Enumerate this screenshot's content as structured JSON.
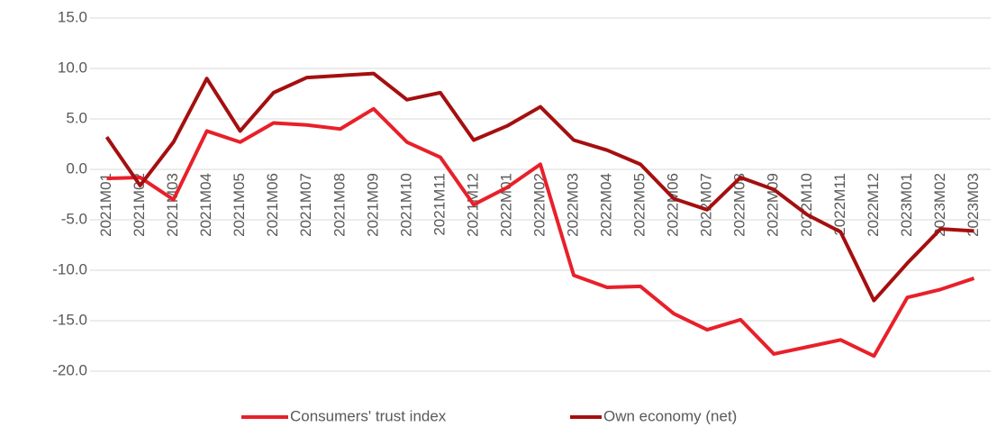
{
  "chart_data": {
    "type": "line",
    "categories": [
      "2021M01",
      "2021M02",
      "2021M03",
      "2021M04",
      "2021M05",
      "2021M06",
      "2021M07",
      "2021M08",
      "2021M09",
      "2021M10",
      "2021M11",
      "2021M12",
      "2022M01",
      "2022M02",
      "2022M03",
      "2022M04",
      "2022M05",
      "2022M06",
      "2022M07",
      "2022M08",
      "2022M09",
      "2022M10",
      "2022M11",
      "2022M12",
      "2023M01",
      "2023M02",
      "2023M03"
    ],
    "series": [
      {
        "name": "Consumers' trust index",
        "color": "#e8202a",
        "values": [
          -0.9,
          -0.8,
          -3.0,
          3.8,
          2.7,
          4.6,
          4.4,
          4.0,
          6.0,
          2.7,
          1.2,
          -3.5,
          -1.8,
          0.5,
          -10.5,
          -11.7,
          -11.6,
          -14.3,
          -15.9,
          -14.9,
          -18.3,
          -17.6,
          -16.9,
          -18.5,
          -12.7,
          -11.9,
          -10.8
        ]
      },
      {
        "name": "Own economy (net)",
        "color": "#a50f0f",
        "values": [
          3.2,
          -1.6,
          2.7,
          9.0,
          3.8,
          7.6,
          9.1,
          9.3,
          9.5,
          6.9,
          7.6,
          2.9,
          4.3,
          6.2,
          2.9,
          1.9,
          0.5,
          -2.9,
          -4.0,
          -0.8,
          -2.0,
          -4.5,
          -6.2,
          -13.0,
          -9.3,
          -5.9,
          -6.1
        ]
      }
    ],
    "ylim": [
      -22.0,
      15.0
    ],
    "yticks": [
      {
        "value": 15,
        "label": "15.0"
      },
      {
        "value": 10,
        "label": "10.0"
      },
      {
        "value": 5,
        "label": "5.0"
      },
      {
        "value": 0,
        "label": "0.0"
      },
      {
        "value": -5,
        "label": "-5.0"
      },
      {
        "value": -10,
        "label": "-10.0"
      },
      {
        "value": -15,
        "label": "-15.0"
      },
      {
        "value": -20,
        "label": "-20.0"
      }
    ],
    "grid": true,
    "legend": "bottom"
  }
}
